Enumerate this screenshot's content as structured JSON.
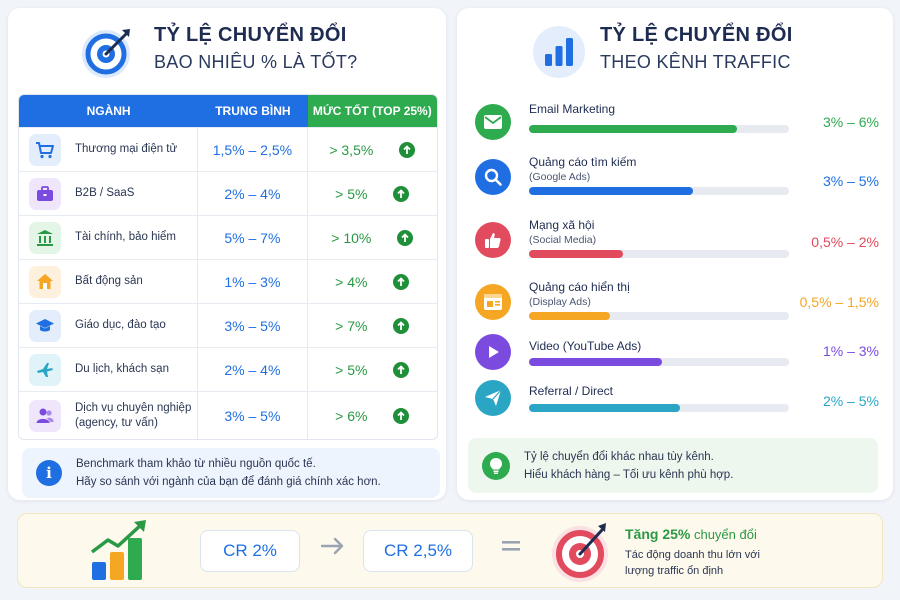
{
  "colors": {
    "blue": "#1f6fe3",
    "green": "#2eaa4f",
    "red": "#e24a5e",
    "orange": "#f5a623",
    "purple": "#7b4be0",
    "teal": "#2aa6c4"
  },
  "left": {
    "title_line1": "TỶ LỆ CHUYỂN ĐỔI",
    "title_line2": "BAO NHIÊU % LÀ TỐT?",
    "icon": "target-icon",
    "table": {
      "headers": {
        "industry": "NGÀNH",
        "average": "TRUNG BÌNH",
        "good": "MỨC TỐT (TOP 25%)"
      },
      "rows": [
        {
          "icon": "cart-icon",
          "label": "Thương mại điện tử",
          "average": "1,5% – 2,5%",
          "good": "> 3,5%"
        },
        {
          "icon": "briefcase-icon",
          "label": "B2B / SaaS",
          "average": "2% – 4%",
          "good": "> 5%"
        },
        {
          "icon": "bank-icon",
          "label": "Tài chính, bảo hiểm",
          "average": "5% – 7%",
          "good": "> 10%"
        },
        {
          "icon": "house-icon",
          "label": "Bất động sản",
          "average": "1% – 3%",
          "good": "> 4%"
        },
        {
          "icon": "graduation-cap-icon",
          "label": "Giáo dục, đào tạo",
          "average": "3% – 5%",
          "good": "> 7%"
        },
        {
          "icon": "airplane-icon",
          "label": "Du lịch, khách sạn",
          "average": "2% – 4%",
          "good": "> 5%"
        },
        {
          "icon": "people-icon",
          "label": "Dịch vụ chuyên nghiệp",
          "label2": "(agency, tư vấn)",
          "average": "3% – 5%",
          "good": "> 6%"
        }
      ]
    },
    "note_line1": "Benchmark tham khảo từ nhiều nguồn quốc tế.",
    "note_line2": "Hãy so sánh với ngành của bạn để đánh giá chính xác hơn."
  },
  "right": {
    "title_line1": "TỶ LỆ CHUYỂN ĐỔI",
    "title_line2": "THEO KÊNH TRAFFIC",
    "icon": "bar-chart-icon",
    "channels": [
      {
        "icon": "mail-icon",
        "name": "Email Marketing",
        "sub": "",
        "value": "3% – 6%",
        "level": 0.8,
        "color": "#2eaa4f"
      },
      {
        "icon": "search-icon",
        "name": "Quảng cáo tìm kiếm",
        "sub": "(Google Ads)",
        "value": "3% – 5%",
        "level": 0.63,
        "color": "#1f6fe3"
      },
      {
        "icon": "thumbs-up-icon",
        "name": "Mạng xã hội",
        "sub": "(Social Media)",
        "value": "0,5% – 2%",
        "level": 0.36,
        "color": "#e24a5e"
      },
      {
        "icon": "browser-ad-icon",
        "name": "Quảng cáo hiển thị",
        "sub": "(Display Ads)",
        "value": "0,5% – 1,5%",
        "level": 0.31,
        "color": "#f5a623"
      },
      {
        "icon": "play-icon",
        "name": "Video (YouTube Ads)",
        "sub": "",
        "value": "1% – 3%",
        "level": 0.51,
        "color": "#7b4be0"
      },
      {
        "icon": "send-icon",
        "name": "Referral / Direct",
        "sub": "",
        "value": "2% – 5%",
        "level": 0.58,
        "color": "#2aa6c4"
      }
    ],
    "note_line1": "Tỷ lệ chuyển đổi khác nhau tùy kênh.",
    "note_line2": "Hiểu khách hàng – Tối ưu kênh phù hợp."
  },
  "bottom": {
    "cr_from": "CR 2%",
    "cr_to": "CR 2,5%",
    "result_bold": "Tăng 25%",
    "result_rest": " chuyển đổi",
    "desc_line1": "Tác động doanh thu lớn với",
    "desc_line2": "lượng traffic ổn định"
  }
}
